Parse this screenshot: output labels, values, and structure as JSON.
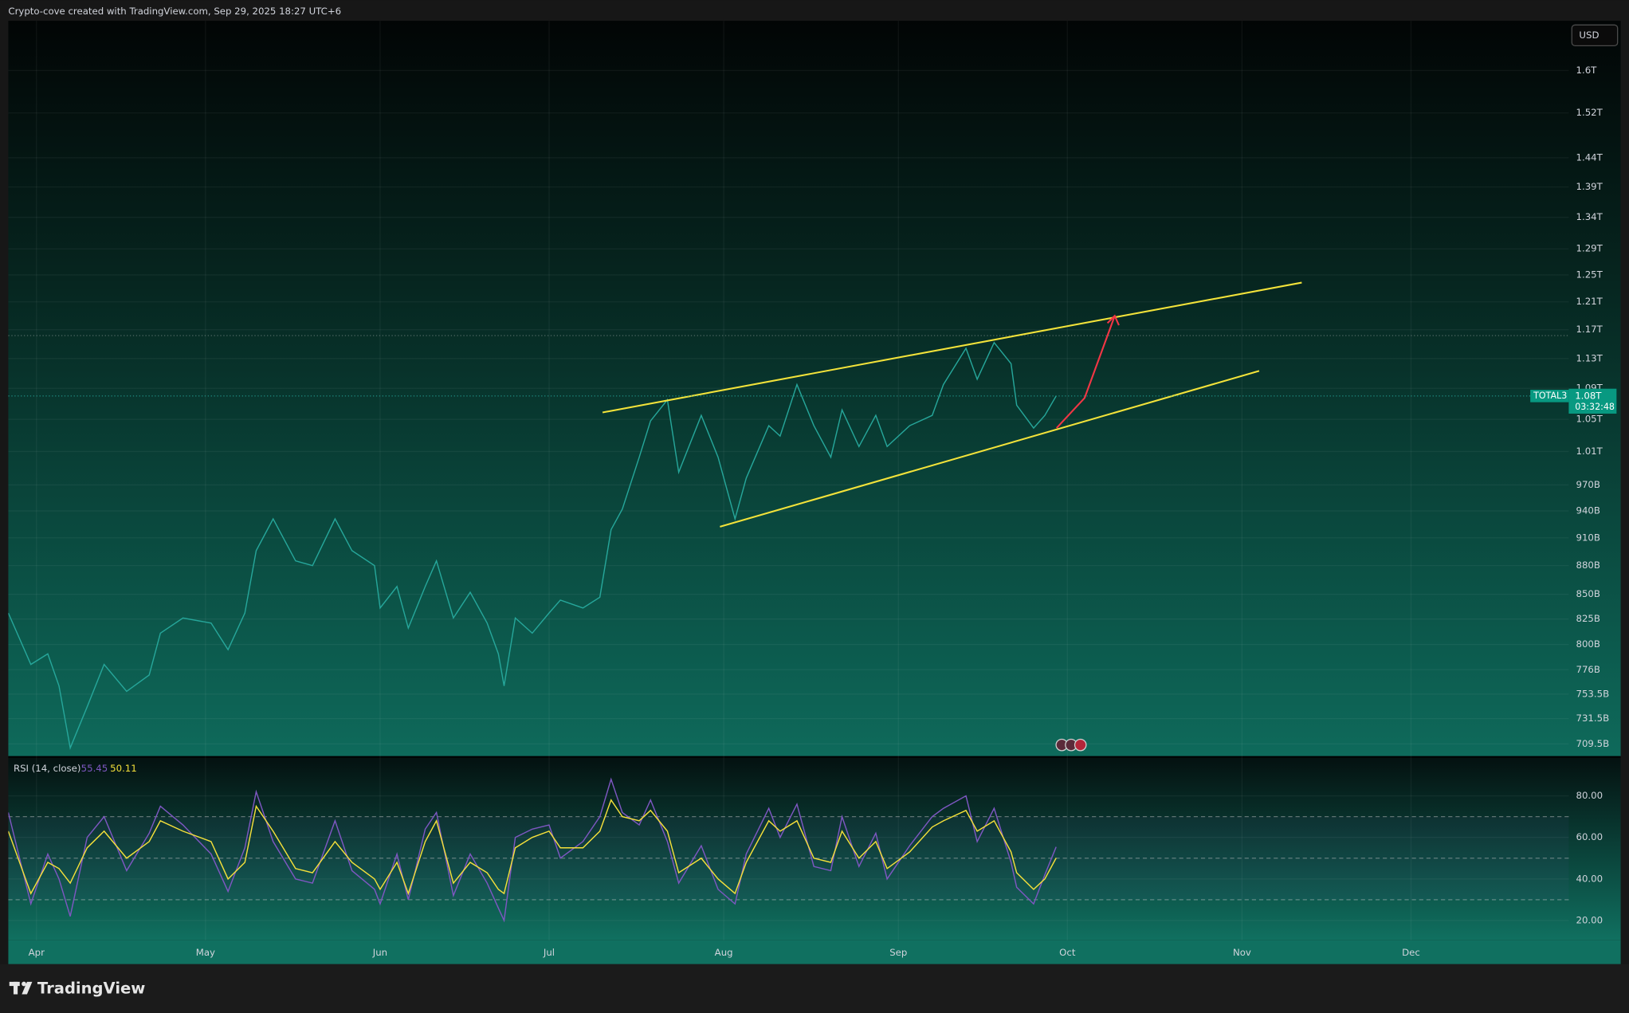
{
  "header": {
    "text": "Crypto-cove created with TradingView.com, Sep 29, 2025 18:27 UTC+6",
    "currency": "USD"
  },
  "brand": "TradingView",
  "chart_data": [
    {
      "type": "line",
      "log_scale": true,
      "grid": true,
      "xlim": [
        "2025-03-27",
        "2025-12-29"
      ],
      "xticks": [
        {
          "value": "2025-04-01",
          "label": "Apr"
        },
        {
          "value": "2025-05-01",
          "label": "May"
        },
        {
          "value": "2025-06-01",
          "label": "Jun"
        },
        {
          "value": "2025-07-01",
          "label": "Jul"
        },
        {
          "value": "2025-08-01",
          "label": "Aug"
        },
        {
          "value": "2025-09-01",
          "label": "Sep"
        },
        {
          "value": "2025-10-01",
          "label": "Oct"
        },
        {
          "value": "2025-11-01",
          "label": "Nov"
        },
        {
          "value": "2025-12-01",
          "label": "Dec"
        }
      ],
      "ylim": [
        698900000000,
        1699000000000
      ],
      "yticks": [
        {
          "value": 1600000000000,
          "label": "1.6T"
        },
        {
          "value": 1520000000000,
          "label": "1.52T"
        },
        {
          "value": 1440000000000,
          "label": "1.44T"
        },
        {
          "value": 1390000000000,
          "label": "1.39T"
        },
        {
          "value": 1340000000000,
          "label": "1.34T"
        },
        {
          "value": 1290000000000,
          "label": "1.29T"
        },
        {
          "value": 1250000000000,
          "label": "1.25T"
        },
        {
          "value": 1210000000000,
          "label": "1.21T"
        },
        {
          "value": 1170000000000,
          "label": "1.17T"
        },
        {
          "value": 1130000000000,
          "label": "1.13T"
        },
        {
          "value": 1090000000000,
          "label": "1.09T"
        },
        {
          "value": 1050000000000,
          "label": "1.05T"
        },
        {
          "value": 1010000000000,
          "label": "1.01T"
        },
        {
          "value": 970000000000,
          "label": "970B"
        },
        {
          "value": 940000000000,
          "label": "940B"
        },
        {
          "value": 910000000000,
          "label": "910B"
        },
        {
          "value": 880000000000,
          "label": "880B"
        },
        {
          "value": 850000000000,
          "label": "850B"
        },
        {
          "value": 825000000000,
          "label": "825B"
        },
        {
          "value": 800000000000,
          "label": "800B"
        },
        {
          "value": 776000000000,
          "label": "776B"
        },
        {
          "value": 753500000000,
          "label": "753.5B"
        },
        {
          "value": 731500000000,
          "label": "731.5B"
        },
        {
          "value": 709500000000,
          "label": "709.5B"
        }
      ],
      "x": [
        "2025-03-27",
        "2025-03-31",
        "2025-04-03",
        "2025-04-05",
        "2025-04-07",
        "2025-04-10",
        "2025-04-13",
        "2025-04-17",
        "2025-04-21",
        "2025-04-23",
        "2025-04-27",
        "2025-05-02",
        "2025-05-05",
        "2025-05-08",
        "2025-05-10",
        "2025-05-13",
        "2025-05-17",
        "2025-05-20",
        "2025-05-24",
        "2025-05-27",
        "2025-05-31",
        "2025-06-01",
        "2025-06-04",
        "2025-06-06",
        "2025-06-09",
        "2025-06-11",
        "2025-06-14",
        "2025-06-17",
        "2025-06-20",
        "2025-06-22",
        "2025-06-23",
        "2025-06-25",
        "2025-06-28",
        "2025-07-01",
        "2025-07-03",
        "2025-07-07",
        "2025-07-10",
        "2025-07-12",
        "2025-07-14",
        "2025-07-17",
        "2025-07-19",
        "2025-07-22",
        "2025-07-24",
        "2025-07-28",
        "2025-07-31",
        "2025-08-03",
        "2025-08-05",
        "2025-08-09",
        "2025-08-11",
        "2025-08-14",
        "2025-08-17",
        "2025-08-20",
        "2025-08-22",
        "2025-08-25",
        "2025-08-28",
        "2025-08-30",
        "2025-09-03",
        "2025-09-07",
        "2025-09-09",
        "2025-09-13",
        "2025-09-15",
        "2025-09-18",
        "2025-09-21",
        "2025-09-22",
        "2025-09-25",
        "2025-09-27",
        "2025-09-29"
      ],
      "series": [
        {
          "name": "TOTAL3",
          "color": "#26a69a",
          "values": [
            831000000000,
            781000000000,
            791000000000,
            761000000000,
            706000000000,
            742000000000,
            781000000000,
            756000000000,
            771000000000,
            811000000000,
            826000000000,
            821000000000,
            795000000000,
            831000000000,
            896000000000,
            931000000000,
            885000000000,
            880000000000,
            931000000000,
            896000000000,
            880000000000,
            836000000000,
            858000000000,
            816000000000,
            858000000000,
            885000000000,
            826000000000,
            852000000000,
            821000000000,
            791000000000,
            761000000000,
            826000000000,
            811000000000,
            831000000000,
            844000000000,
            836000000000,
            847000000000,
            919000000000,
            942000000000,
            1003000000000,
            1048000000000,
            1075000000000,
            985000000000,
            1055000000000,
            1003000000000,
            931000000000,
            978000000000,
            1042000000000,
            1029000000000,
            1095000000000,
            1042000000000,
            1003000000000,
            1062000000000,
            1016000000000,
            1055000000000,
            1016000000000,
            1042000000000,
            1055000000000,
            1095000000000,
            1144000000000,
            1102000000000,
            1152000000000,
            1123000000000,
            1068000000000,
            1039000000000,
            1055000000000,
            1080000000000
          ]
        }
      ],
      "last_label": "1.08T",
      "countdown": "03:32:48"
    },
    {
      "type": "line",
      "title": "RSI (14, close)",
      "grid": true,
      "ylim": [
        10.5,
        98
      ],
      "yticks": [
        {
          "value": 20,
          "label": "20.00"
        },
        {
          "value": 40,
          "label": "40.00"
        },
        {
          "value": 60,
          "label": "60.00"
        },
        {
          "value": 80,
          "label": "80.00"
        }
      ],
      "bands": [
        30,
        50,
        70
      ],
      "series": [
        {
          "color": "#7e57c2",
          "values": [
            72,
            28,
            52,
            40,
            22,
            60,
            70,
            44,
            62,
            75,
            66,
            52,
            34,
            55,
            82,
            58,
            40,
            38,
            68,
            44,
            35,
            28,
            52,
            30,
            64,
            72,
            32,
            52,
            38,
            26,
            20,
            60,
            64,
            66,
            50,
            58,
            70,
            88,
            72,
            66,
            78,
            58,
            38,
            56,
            35,
            28,
            52,
            74,
            60,
            76,
            46,
            44,
            70,
            46,
            62,
            40,
            56,
            70,
            74,
            80,
            58,
            74,
            48,
            36,
            28,
            42,
            55.45
          ]
        },
        {
          "color": "#f5e03a",
          "values": [
            63,
            33,
            48,
            45,
            38,
            55,
            63,
            50,
            58,
            68,
            63,
            58,
            40,
            48,
            75,
            63,
            45,
            43,
            58,
            48,
            40,
            35,
            48,
            33,
            58,
            68,
            38,
            48,
            43,
            35,
            33,
            55,
            60,
            63,
            55,
            55,
            63,
            78,
            70,
            68,
            73,
            63,
            43,
            50,
            40,
            33,
            48,
            68,
            63,
            68,
            50,
            48,
            63,
            50,
            58,
            45,
            53,
            65,
            68,
            73,
            63,
            68,
            53,
            43,
            35,
            40,
            50.11
          ]
        }
      ]
    }
  ]
}
